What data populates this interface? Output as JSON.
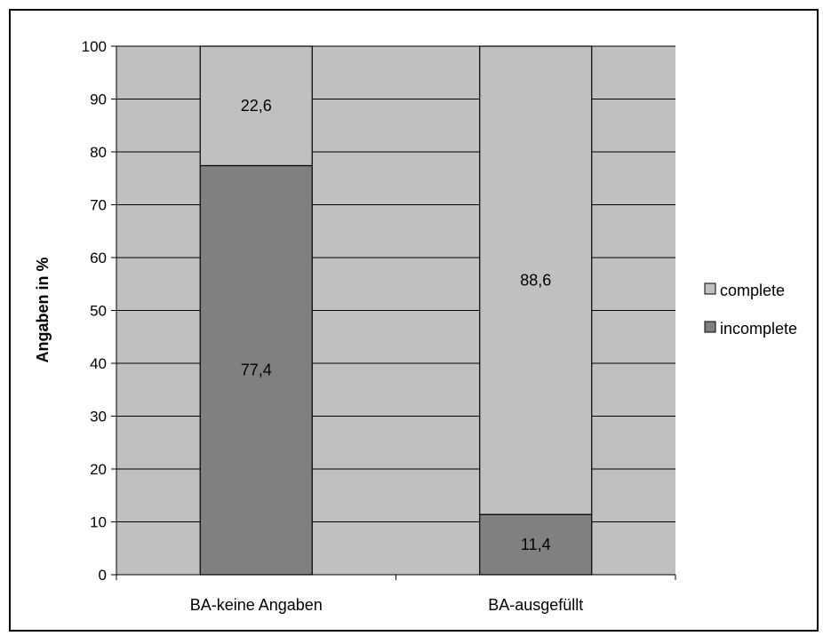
{
  "chart_data": {
    "type": "bar",
    "stacked": true,
    "categories": [
      "BA-keine Angaben",
      "BA-ausgefüllt"
    ],
    "series": [
      {
        "name": "incomplete",
        "values": [
          77.4,
          11.4
        ],
        "labels": [
          "77,4",
          "11,4"
        ],
        "color": "#808080"
      },
      {
        "name": "complete",
        "values": [
          22.6,
          88.6
        ],
        "labels": [
          "22,6",
          "88,6"
        ],
        "color": "#c0c0c0"
      }
    ],
    "ylabel": "Angaben in %",
    "ylim": [
      0,
      100
    ],
    "yticks": [
      0,
      10,
      20,
      30,
      40,
      50,
      60,
      70,
      80,
      90,
      100
    ],
    "grid": true,
    "plot_background": "#c0c0c0",
    "legend": {
      "placement": "right",
      "entries": [
        {
          "name": "complete",
          "color": "#c0c0c0"
        },
        {
          "name": "incomplete",
          "color": "#808080"
        }
      ]
    }
  }
}
